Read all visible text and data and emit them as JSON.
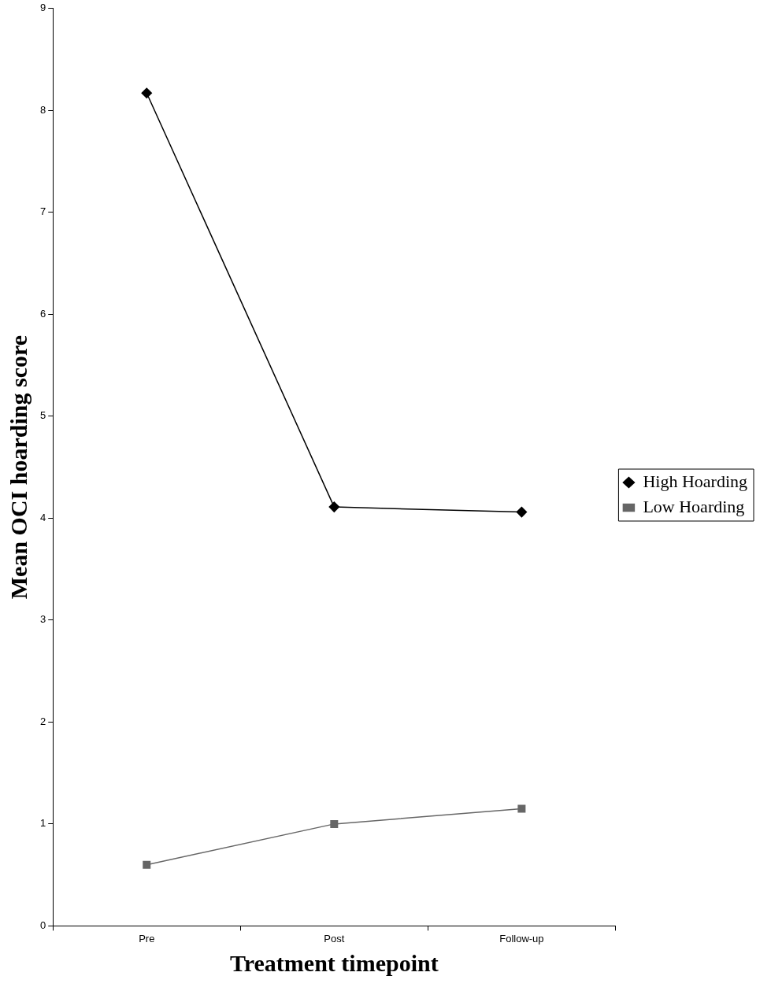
{
  "chart_data": {
    "type": "line",
    "xlabel": "Treatment timepoint",
    "ylabel": "Mean OCI hoarding score",
    "categories": [
      "Pre",
      "Post",
      "Follow-up"
    ],
    "series": [
      {
        "name": "High Hoarding",
        "color": "#000000",
        "marker": "diamond",
        "values": [
          8.17,
          4.11,
          4.06
        ]
      },
      {
        "name": "Low Hoarding",
        "color": "#666666",
        "marker": "square",
        "values": [
          0.6,
          1.0,
          1.15
        ]
      }
    ],
    "ylim": [
      0,
      9
    ],
    "yticks": [
      0,
      1,
      2,
      3,
      4,
      5,
      6,
      7,
      8,
      9
    ],
    "grid": false,
    "legend": "right",
    "line_style": "solid"
  }
}
